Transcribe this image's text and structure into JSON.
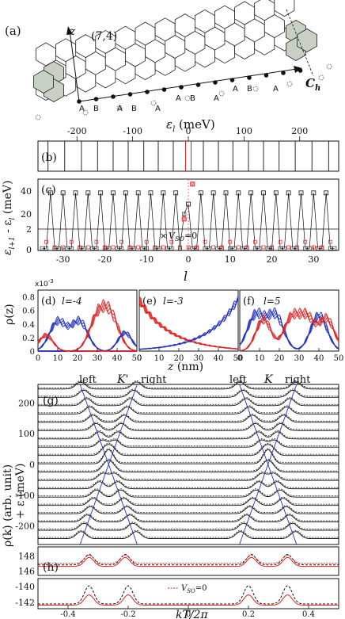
{
  "panels": {
    "a": {
      "label": "(a)",
      "chirality": "(7,4)",
      "axis": "z",
      "vector": "C",
      "vector_sub": "h",
      "atom_labels": [
        "A",
        "B",
        "A",
        "B",
        "A",
        "A",
        "B",
        "A",
        "A",
        "B",
        "A"
      ]
    },
    "b": {
      "label": "(b)",
      "xlabel": "ε",
      "xlabel_sub": "l",
      "xlabel_unit": " (meV)",
      "ticks": [
        "-200",
        "-100",
        "0",
        "100",
        "200"
      ],
      "tick_values": [
        -200,
        -100,
        0,
        100,
        200
      ],
      "xlim": [
        -270,
        270
      ],
      "levels": [
        -252,
        -222,
        -192,
        -163,
        -135,
        -108,
        -80,
        -54,
        -27,
        -5,
        5,
        27,
        54,
        80,
        108,
        135,
        163,
        192,
        222,
        252
      ],
      "red_levels": [
        -5,
        5
      ]
    },
    "c": {
      "label": "(c)",
      "xlabel": "l",
      "ylabel_main": "ε",
      "ylabel_sub1": "l+1",
      "ylabel_mid": " - ε",
      "ylabel_sub2": "l",
      "ylabel_unit": " (meV)",
      "legend": "V",
      "legend_sub": "SO",
      "legend_tail": "=0",
      "xticks": [
        "-30",
        "-20",
        "-10",
        "0",
        "10",
        "20",
        "30"
      ],
      "xtick_values": [
        -30,
        -20,
        -10,
        0,
        10,
        20,
        30
      ],
      "yticks_top": [
        "40",
        "20"
      ],
      "yticks_bottom": [
        "2",
        "0"
      ],
      "xlim": [
        -36,
        36
      ],
      "series": [
        {
          "name": "spacing",
          "peaks": 30,
          "valleys": 0.2
        },
        {
          "name": "V_SO=0",
          "peaks_center": 20
        }
      ]
    },
    "d": {
      "label": "(d)",
      "l_text": "l=-4"
    },
    "e": {
      "label": "(e)",
      "l_text": "l=-3"
    },
    "f": {
      "label": "(f)",
      "l_text": "l=5"
    },
    "def_common": {
      "ylabel": "ρ(z)",
      "scale": "x10",
      "scale_exp": "-3",
      "yticks": [
        "0.8",
        "0.6",
        "0.4",
        "0.2",
        "0"
      ],
      "ytick_values": [
        0.8,
        0.6,
        0.4,
        0.2,
        0
      ],
      "xticks": [
        "0",
        "10",
        "20",
        "30",
        "40",
        "50"
      ],
      "xtick_values": [
        0,
        10,
        20,
        30,
        40,
        50
      ],
      "xlabel": "z",
      "xlabel_unit": " (nm)",
      "xlim": [
        0,
        50
      ],
      "ylim": [
        0,
        0.9
      ]
    },
    "g": {
      "label": "(g)",
      "valley_left": "K'",
      "valley_right": "K",
      "left_word": "left",
      "right_word": "right",
      "yticks": [
        "200",
        "100",
        "0",
        "-100",
        "-200"
      ],
      "ytick_values": [
        200,
        100,
        0,
        -100,
        -200
      ],
      "ylim": [
        -260,
        260
      ]
    },
    "h": {
      "label": "(h)",
      "upper_yticks": [
        "148",
        "146"
      ],
      "upper_ytick_values": [
        148,
        146
      ],
      "upper_ylim": [
        145.4,
        149.2
      ],
      "lower_yticks": [
        "-140",
        "-142"
      ],
      "lower_ytick_values": [
        -140,
        -142
      ],
      "lower_ylim": [
        -142.8,
        -139.0
      ],
      "legend": "V",
      "legend_sub": "SO",
      "legend_tail": "=0"
    },
    "bottom": {
      "xticks": [
        "-0.4",
        "-0.2",
        "0",
        "0.2",
        "0.4"
      ],
      "xtick_values": [
        -0.4,
        -0.2,
        0,
        0.2,
        0.4
      ],
      "xlim": [
        -0.5,
        0.5
      ],
      "xlabel": "kT/2π",
      "ylabel_a": "ρ(k) (arb. unit)",
      "ylabel_b": "+ ε (meV)"
    }
  },
  "colors": {
    "red": "#e02020",
    "blue": "#2030c0",
    "gray_hex": "#c8d0c4",
    "black": "#111111"
  }
}
